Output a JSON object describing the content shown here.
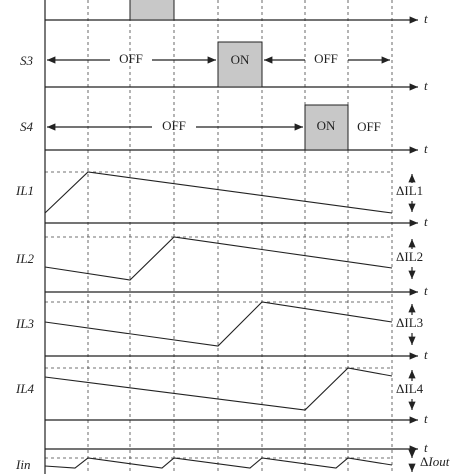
{
  "time_axis_label": "t",
  "switches": [
    {
      "label": "S3",
      "states": [
        "OFF",
        "ON",
        "OFF"
      ]
    },
    {
      "label": "S4",
      "states": [
        "OFF",
        "ON",
        "OFF"
      ]
    }
  ],
  "currents": [
    {
      "label": "IL1",
      "ripple": "ΔIL1"
    },
    {
      "label": "IL2",
      "ripple": "ΔIL2"
    },
    {
      "label": "IL3",
      "ripple": "ΔIL3"
    },
    {
      "label": "IL4",
      "ripple": "ΔIL4"
    },
    {
      "label": "Iin",
      "ripple_symbol": "Δ",
      "ripple_name": "Iout"
    }
  ]
}
